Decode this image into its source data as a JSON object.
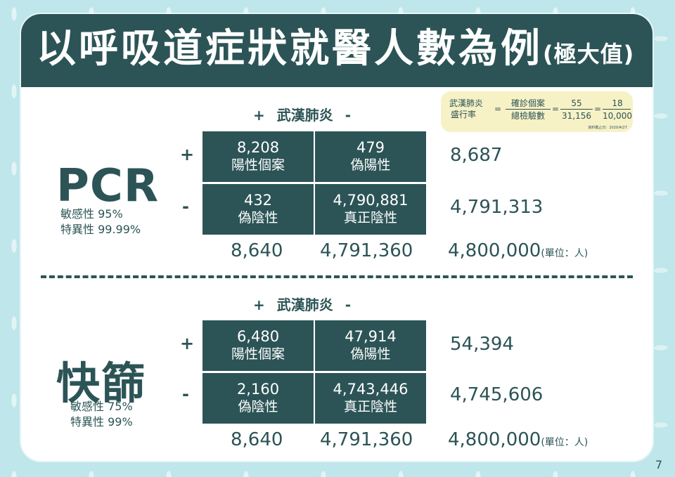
{
  "title": {
    "main": "以呼吸道症狀就醫人數為例",
    "sub": "(極大值)"
  },
  "column_header": {
    "plus": "+",
    "label": "武漢肺炎",
    "minus": "-"
  },
  "row_signs": {
    "plus": "+",
    "minus": "-"
  },
  "formula": {
    "label_line1": "武漢肺炎",
    "label_line2": "盛行率",
    "eq1": "=",
    "num1": "確診個案",
    "den1": "總檢驗數",
    "eq2": "=",
    "num2": "55",
    "den2": "31,156",
    "eq3": "=",
    "num3": "18",
    "den3": "10,000",
    "date": "資料截止日：2020/4/27"
  },
  "unit": "(單位：人)",
  "pcr": {
    "name": "PCR",
    "sensitivity": "敏感性 95%",
    "specificity": "特異性 99.99%",
    "cells": {
      "tp": {
        "value": "8,208",
        "label": "陽性個案"
      },
      "fp": {
        "value": "479",
        "label": "偽陽性"
      },
      "fn": {
        "value": "432",
        "label": "偽陰性"
      },
      "tn": {
        "value": "4,790,881",
        "label": "真正陰性"
      }
    },
    "row_totals": [
      "8,687",
      "4,791,313"
    ],
    "col_totals": [
      "8,640",
      "4,791,360"
    ],
    "grand_total": "4,800,000"
  },
  "rapid": {
    "name": "快篩",
    "sensitivity": "敏感性 75%",
    "specificity": "特異性 99%",
    "cells": {
      "tp": {
        "value": "6,480",
        "label": "陽性個案"
      },
      "fp": {
        "value": "47,914",
        "label": "偽陽性"
      },
      "fn": {
        "value": "2,160",
        "label": "偽陰性"
      },
      "tn": {
        "value": "4,743,446",
        "label": "真正陰性"
      }
    },
    "row_totals": [
      "54,394",
      "4,745,606"
    ],
    "col_totals": [
      "8,640",
      "4,791,360"
    ],
    "grand_total": "4,800,000"
  },
  "page_number": "7",
  "colors": {
    "primary": "#2c5456",
    "background": "#bfe6ea",
    "formula_bg": "#f7f1c6"
  }
}
